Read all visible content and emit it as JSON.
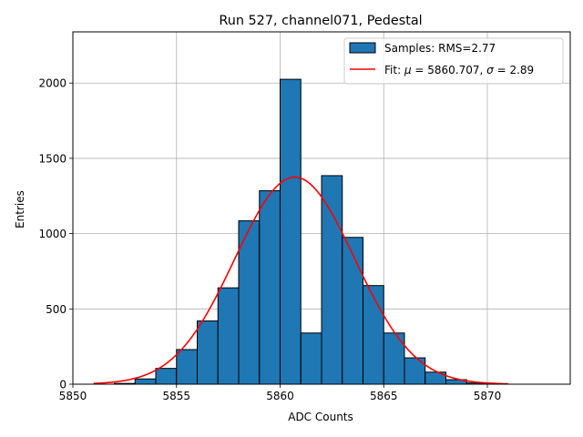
{
  "chart_data": {
    "type": "bar",
    "title": "Run 527, channel071, Pedestal",
    "xlabel": "ADC Counts",
    "ylabel": "Entries",
    "xlim": [
      5850,
      5874
    ],
    "ylim": [
      0,
      2340
    ],
    "xticks": [
      5850,
      5855,
      5860,
      5865,
      5870
    ],
    "yticks": [
      0,
      500,
      1000,
      1500,
      2000
    ],
    "grid": true,
    "legend_position": "upper right",
    "bins": [
      {
        "x0": 5852,
        "x1": 5853,
        "value": 5
      },
      {
        "x0": 5853,
        "x1": 5854,
        "value": 35
      },
      {
        "x0": 5854,
        "x1": 5855,
        "value": 105
      },
      {
        "x0": 5855,
        "x1": 5856,
        "value": 230
      },
      {
        "x0": 5856,
        "x1": 5857,
        "value": 420
      },
      {
        "x0": 5857,
        "x1": 5858,
        "value": 640
      },
      {
        "x0": 5858,
        "x1": 5859,
        "value": 1085
      },
      {
        "x0": 5859,
        "x1": 5860,
        "value": 1285
      },
      {
        "x0": 5860,
        "x1": 5861,
        "value": 2025
      },
      {
        "x0": 5861,
        "x1": 5862,
        "value": 340
      },
      {
        "x0": 5862,
        "x1": 5863,
        "value": 1385
      },
      {
        "x0": 5863,
        "x1": 5864,
        "value": 975
      },
      {
        "x0": 5864,
        "x1": 5865,
        "value": 655
      },
      {
        "x0": 5865,
        "x1": 5866,
        "value": 340
      },
      {
        "x0": 5866,
        "x1": 5867,
        "value": 175
      },
      {
        "x0": 5867,
        "x1": 5868,
        "value": 80
      },
      {
        "x0": 5868,
        "x1": 5869,
        "value": 30
      },
      {
        "x0": 5869,
        "x1": 5870,
        "value": 8
      },
      {
        "x0": 5870,
        "x1": 5871,
        "value": 2
      }
    ],
    "fit": {
      "mu": 5860.707,
      "sigma": 2.89,
      "amplitude": 1375,
      "x_range": [
        5851,
        5871
      ]
    },
    "series": [
      {
        "name": "Samples: RMS=2.77",
        "kind": "histogram",
        "color": "#1f77b4",
        "edgecolor": "#000000"
      },
      {
        "name_parts": [
          "Fit: ",
          "μ",
          " = 5860.707, ",
          "σ",
          " = 2.89"
        ],
        "kind": "gaussian-fit",
        "color": "#ff0000"
      }
    ]
  }
}
